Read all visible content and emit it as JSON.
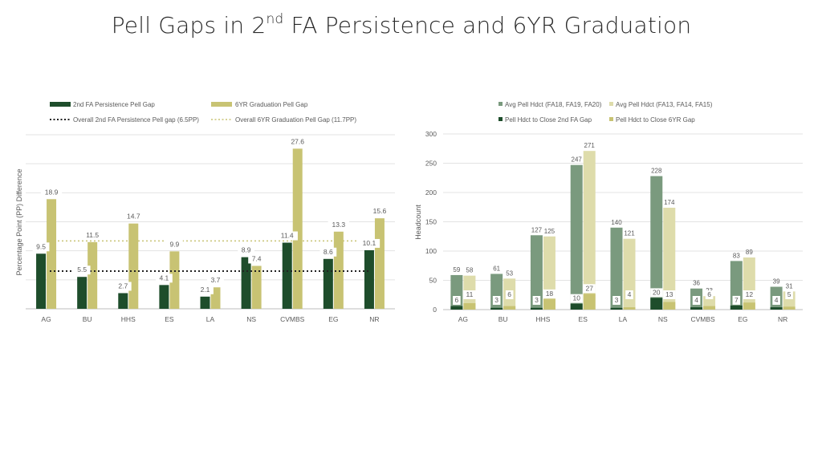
{
  "page": {
    "title_prefix": "Pell Gaps in 2",
    "title_sup": "nd",
    "title_suffix": " FA Persistence and 6YR Graduation"
  },
  "colors": {
    "dark_green": "#1e4d2b",
    "gold": "#c8c373",
    "sage": "#7a9a7e",
    "light_gold": "#dedcab",
    "grid": "#e3e3e3",
    "axis_text": "#5a5a5a"
  },
  "chart_data": [
    {
      "type": "bar",
      "categories": [
        "AG",
        "BU",
        "HHS",
        "ES",
        "LA",
        "NS",
        "CVMBS",
        "EG",
        "NR"
      ],
      "series": [
        {
          "name": "2nd FA Persistence Pell Gap",
          "values": [
            9.5,
            5.5,
            2.7,
            4.1,
            2.1,
            8.9,
            11.4,
            8.6,
            10.1
          ]
        },
        {
          "name": "6YR Graduation Pell Gap",
          "values": [
            18.9,
            11.5,
            14.7,
            9.9,
            3.7,
            7.4,
            27.6,
            13.3,
            15.6
          ]
        }
      ],
      "reference_lines": [
        {
          "name": "Overall 2nd FA Persistence Pell gap  (6.5PP)",
          "value": 6.5
        },
        {
          "name": "Overall 6YR Graduation Pell Gap (11.7PP)",
          "value": 11.7
        }
      ],
      "ylabel": "Percentage Point (PP) Difference",
      "ylim": [
        0,
        30
      ],
      "grid": true,
      "legend": "top-left"
    },
    {
      "type": "bar",
      "categories": [
        "AG",
        "BU",
        "HHS",
        "ES",
        "LA",
        "NS",
        "CVMBS",
        "EG",
        "NR"
      ],
      "series": [
        {
          "name": "Avg Pell Hdct (FA18, FA19, FA20)",
          "values": [
            59,
            61,
            127,
            247,
            140,
            228,
            36,
            83,
            39
          ]
        },
        {
          "name": "Avg Pell Hdct (FA13, FA14, FA15)",
          "values": [
            58,
            53,
            125,
            271,
            121,
            174,
            23,
            89,
            31
          ]
        },
        {
          "name": "Pell Hdct to Close 2nd FA Gap",
          "values": [
            6,
            3,
            3,
            10,
            3,
            20,
            4,
            7,
            4
          ]
        },
        {
          "name": "Pell Hdct to Close 6YR Gap",
          "values": [
            11,
            6,
            18,
            27,
            4,
            13,
            6,
            12,
            5
          ]
        }
      ],
      "ylabel": "Headcount",
      "ylim": [
        0,
        300
      ],
      "yticks": [
        0,
        50,
        100,
        150,
        200,
        250,
        300
      ],
      "grid": true,
      "legend": "top"
    }
  ]
}
